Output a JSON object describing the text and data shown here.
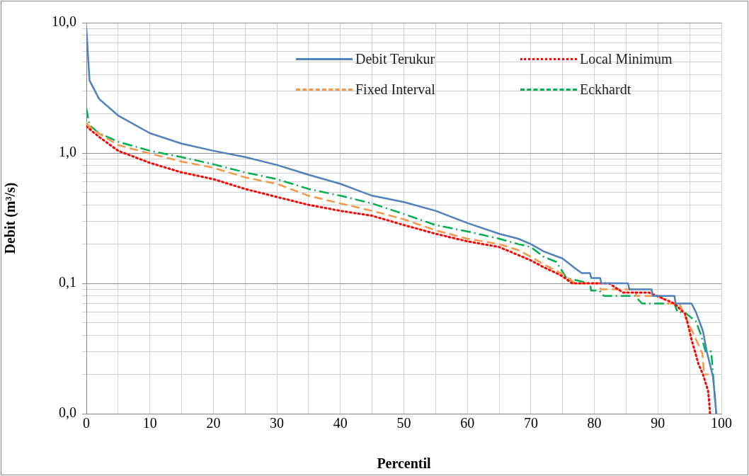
{
  "chart_data": {
    "type": "line",
    "xlabel": "Percentil",
    "ylabel": "Debit (m³/s)",
    "log": "y",
    "grid": true,
    "legend": "top right",
    "marker": "none",
    "xlim": [
      0,
      100
    ],
    "xticks": [
      0,
      {
        "value": 5,
        "label": null
      },
      10,
      {
        "value": 15,
        "label": null
      },
      20,
      {
        "value": 25,
        "label": null
      },
      30,
      {
        "value": 35,
        "label": null
      },
      40,
      {
        "value": 45,
        "label": null
      },
      50,
      {
        "value": 55,
        "label": null
      },
      60,
      {
        "value": 65,
        "label": null
      },
      70,
      {
        "value": 75,
        "label": null
      },
      80,
      {
        "value": 85,
        "label": null
      },
      90,
      {
        "value": 95,
        "label": null
      },
      100
    ],
    "ylim": [
      0.01,
      10
    ],
    "yticks": [
      {
        "value": 0.01,
        "label": "0,0"
      },
      {
        "value": 0.02,
        "label": null
      },
      {
        "value": 0.03,
        "label": null
      },
      {
        "value": 0.04,
        "label": null
      },
      {
        "value": 0.05,
        "label": null
      },
      {
        "value": 0.06,
        "label": null
      },
      {
        "value": 0.07,
        "label": null
      },
      {
        "value": 0.08,
        "label": null
      },
      {
        "value": 0.09,
        "label": null
      },
      {
        "value": 0.1,
        "label": "0,1"
      },
      {
        "value": 0.2,
        "label": null
      },
      {
        "value": 0.3,
        "label": null
      },
      {
        "value": 0.4,
        "label": null
      },
      {
        "value": 0.5,
        "label": null
      },
      {
        "value": 0.6,
        "label": null
      },
      {
        "value": 0.7,
        "label": null
      },
      {
        "value": 0.8,
        "label": null
      },
      {
        "value": 0.9,
        "label": null
      },
      {
        "value": 1,
        "label": "1,0"
      },
      {
        "value": 2,
        "label": null
      },
      {
        "value": 3,
        "label": null
      },
      {
        "value": 4,
        "label": null
      },
      {
        "value": 5,
        "label": null
      },
      {
        "value": 6,
        "label": null
      },
      {
        "value": 7,
        "label": null
      },
      {
        "value": 8,
        "label": null
      },
      {
        "value": 9,
        "label": null
      },
      {
        "value": 10,
        "label": "10,0"
      }
    ],
    "series": [
      {
        "name": "Debit Terukur",
        "color": "#4f81bd",
        "line_style": "solid",
        "x": [
          0,
          0.5,
          2,
          5,
          10,
          15,
          20,
          25,
          30,
          35,
          40,
          45,
          50,
          55,
          60,
          65,
          68,
          70,
          72,
          75,
          77,
          78,
          79.3,
          79.5,
          80.9,
          81.1,
          85.3,
          85.5,
          89,
          89.2,
          92.6,
          92.8,
          95.3,
          96,
          97.1,
          97.7,
          98.7,
          99.2
        ],
        "values": [
          9,
          3.6,
          2.6,
          1.94,
          1.42,
          1.18,
          1.04,
          0.93,
          0.81,
          0.68,
          0.58,
          0.47,
          0.42,
          0.36,
          0.29,
          0.24,
          0.22,
          0.2,
          0.176,
          0.155,
          0.13,
          0.12,
          0.12,
          0.11,
          0.11,
          0.1,
          0.1,
          0.09,
          0.09,
          0.08,
          0.08,
          0.07,
          0.07,
          0.06,
          0.043,
          0.03,
          0.019,
          0.01
        ]
      },
      {
        "name": "Local Minimum",
        "color": "#ff0000",
        "line_style": "dotted",
        "x": [
          0,
          2,
          5,
          10,
          15,
          20,
          25,
          30,
          35,
          40,
          45,
          50,
          55,
          60,
          65,
          68,
          70,
          72,
          74,
          75,
          76.5,
          82.3,
          84.5,
          88.6,
          92.6,
          94.3,
          94.8,
          95.3,
          96.4,
          97.1,
          97.9,
          98.1,
          98.2
        ],
        "values": [
          1.6,
          1.33,
          1.04,
          0.84,
          0.71,
          0.63,
          0.53,
          0.46,
          0.4,
          0.36,
          0.33,
          0.28,
          0.24,
          0.21,
          0.19,
          0.165,
          0.15,
          0.133,
          0.12,
          0.113,
          0.1,
          0.1,
          0.085,
          0.085,
          0.07,
          0.058,
          0.047,
          0.037,
          0.024,
          0.02,
          0.015,
          0.012,
          0.01
        ]
      },
      {
        "name": "Fixed Interval",
        "color": "#f79646",
        "line_style": "dashed",
        "x": [
          0,
          1,
          5,
          10,
          15,
          20,
          25,
          30,
          35,
          40,
          45,
          50,
          55,
          60,
          65,
          68,
          70,
          72,
          75,
          77,
          80.8,
          81,
          86.4,
          86.6,
          90.4,
          91.5,
          93.4,
          94.5,
          95.7,
          97,
          97.3,
          98
        ],
        "values": [
          1.7,
          1.51,
          1.15,
          0.99,
          0.86,
          0.77,
          0.65,
          0.58,
          0.47,
          0.41,
          0.36,
          0.31,
          0.255,
          0.22,
          0.2,
          0.18,
          0.16,
          0.14,
          0.118,
          0.1,
          0.1,
          0.09,
          0.09,
          0.08,
          0.08,
          0.07,
          0.07,
          0.053,
          0.04,
          0.029,
          0.02,
          0.02
        ]
      },
      {
        "name": "Eckhardt",
        "color": "#00b050",
        "line_style": "dashdot",
        "x": [
          0,
          0.5,
          2,
          5,
          10,
          15,
          20,
          25,
          30,
          35,
          40,
          45,
          50,
          55,
          60,
          65,
          68,
          70,
          72,
          74,
          75.6,
          79.3,
          79.5,
          80.8,
          81.5,
          86.4,
          87.5,
          92.6,
          93.1,
          94.2,
          96,
          96.8,
          97.5,
          98.4,
          99,
          99.2
        ],
        "values": [
          2.2,
          1.63,
          1.42,
          1.22,
          1.04,
          0.93,
          0.82,
          0.71,
          0.63,
          0.53,
          0.47,
          0.41,
          0.34,
          0.28,
          0.25,
          0.22,
          0.2,
          0.19,
          0.16,
          0.146,
          0.11,
          0.1,
          0.088,
          0.088,
          0.08,
          0.08,
          0.07,
          0.07,
          0.06,
          0.06,
          0.051,
          0.04,
          0.03,
          0.03,
          0.013,
          0.01
        ]
      }
    ]
  }
}
